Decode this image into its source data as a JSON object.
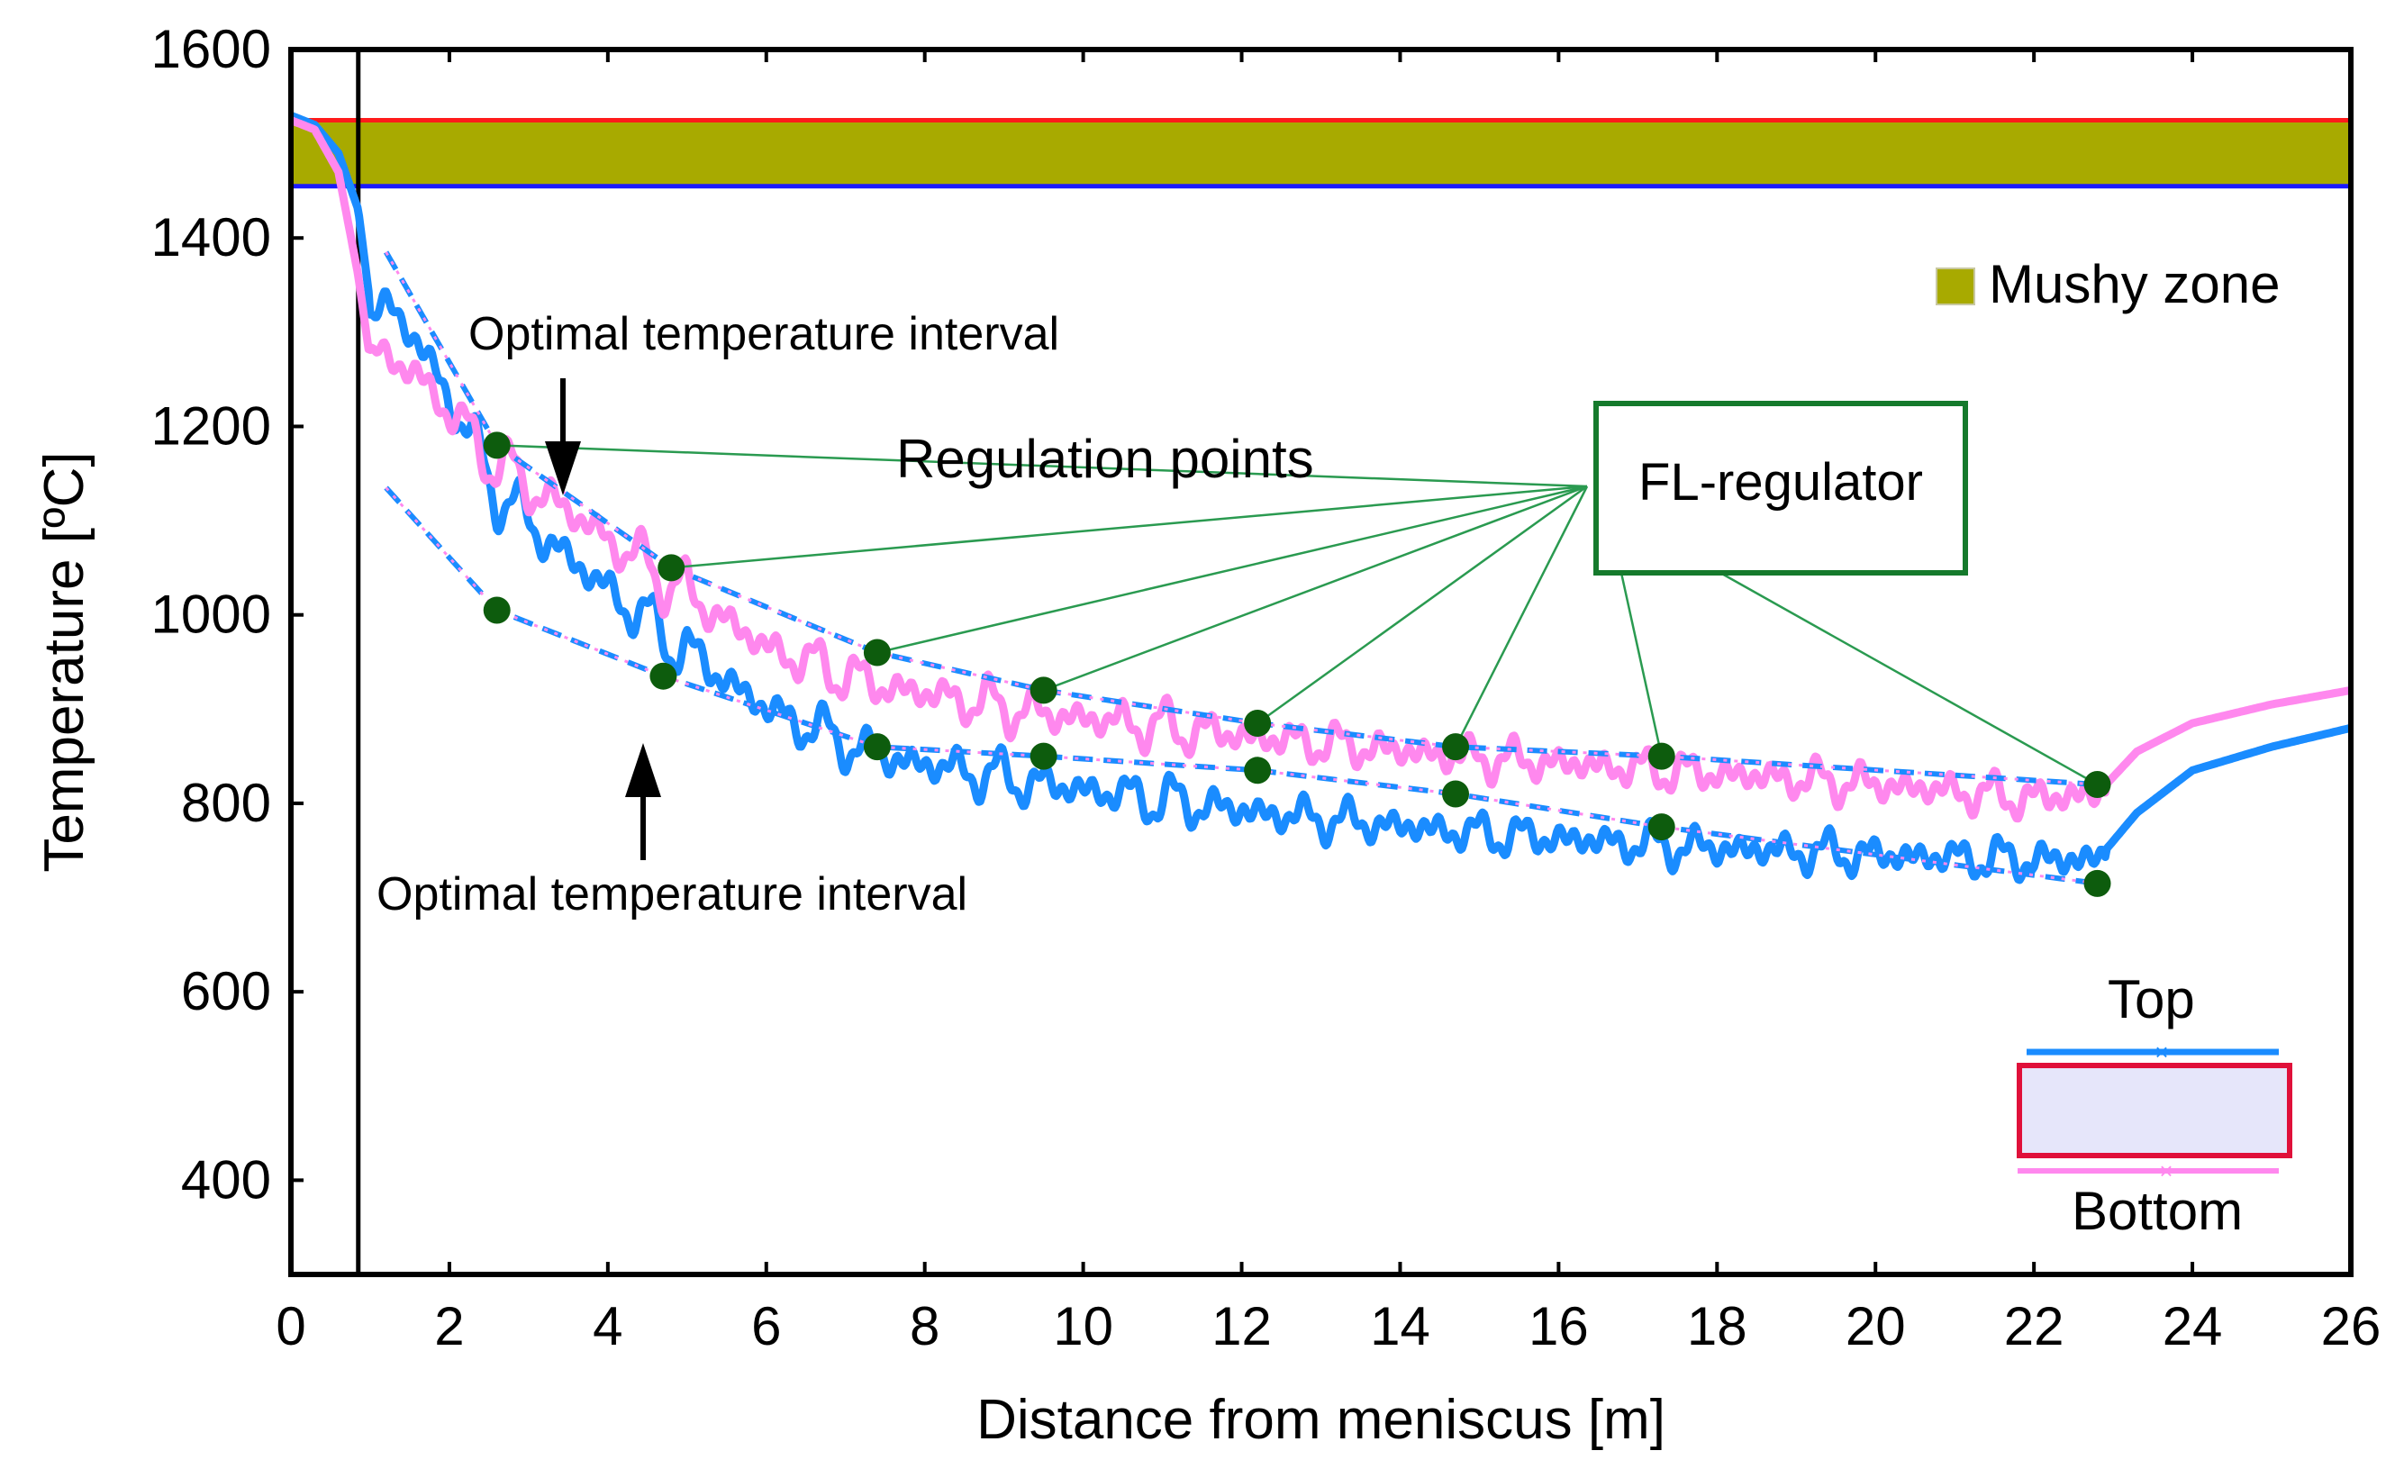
{
  "chart_data": {
    "type": "line",
    "title": "",
    "xlabel": "Distance from meniscus [m]",
    "ylabel": "Temperature [ºC]",
    "xlim": [
      0,
      26
    ],
    "ylim": [
      300,
      1600
    ],
    "x_ticks": [
      0,
      2,
      4,
      6,
      8,
      10,
      12,
      14,
      16,
      18,
      20,
      22,
      24,
      26
    ],
    "y_ticks": [
      400,
      600,
      800,
      1000,
      1200,
      1400,
      1600
    ],
    "grid": false,
    "mold_exit_m": 0.85,
    "mushy_zone": {
      "label": "Mushy zone",
      "liquidus": 1525,
      "solidus": 1455,
      "color": "#a8aa00",
      "liquidus_color": "#ff1a1a",
      "solidus_color": "#1a1aff"
    },
    "series": [
      {
        "name": "Top",
        "color": "#1a8cff",
        "x": [
          0,
          0.3,
          0.6,
          0.85,
          1.0,
          1.3,
          1.6,
          2.0,
          2.6,
          3.5,
          4.7,
          6.0,
          7.4,
          9.5,
          12.2,
          14.7,
          17.3,
          20.0,
          22.0,
          22.8,
          23.3,
          24.0,
          25.0,
          26.0
        ],
        "y": [
          1530,
          1520,
          1490,
          1430,
          1330,
          1320,
          1290,
          1230,
          1130,
          1060,
          980,
          900,
          850,
          820,
          790,
          770,
          755,
          745,
          740,
          740,
          790,
          835,
          860,
          880
        ]
      },
      {
        "name": "Bottom",
        "color": "#ff88ee",
        "x": [
          0,
          0.3,
          0.6,
          0.85,
          1.0,
          1.3,
          1.6,
          2.0,
          2.6,
          3.5,
          4.7,
          6.0,
          7.4,
          9.5,
          12.2,
          14.7,
          17.3,
          20.0,
          22.0,
          22.8,
          23.3,
          24.0,
          25.0,
          26.0
        ],
        "y": [
          1525,
          1515,
          1470,
          1360,
          1270,
          1270,
          1255,
          1215,
          1160,
          1110,
          1040,
          965,
          925,
          895,
          870,
          850,
          835,
          820,
          805,
          810,
          855,
          885,
          905,
          920
        ]
      }
    ],
    "optimal_interval_upper": {
      "x": [
        1.2,
        2.6,
        4.8,
        7.4,
        9.5,
        12.2,
        14.7,
        17.3,
        22.8
      ],
      "y": [
        1385,
        1180,
        1050,
        960,
        920,
        885,
        860,
        850,
        820
      ]
    },
    "optimal_interval_lower": {
      "x": [
        1.2,
        2.6,
        4.7,
        7.4,
        9.5,
        12.2,
        14.7,
        17.3,
        22.8
      ],
      "y": [
        1135,
        1005,
        935,
        860,
        850,
        835,
        810,
        775,
        715
      ]
    },
    "regulation_points_upper": {
      "x": [
        2.6,
        4.8,
        7.4,
        9.5,
        12.2,
        14.7,
        17.3,
        22.8
      ],
      "y": [
        1180,
        1050,
        960,
        920,
        885,
        860,
        850,
        820
      ]
    },
    "regulation_points_lower": {
      "x": [
        2.6,
        4.7,
        7.4,
        9.5,
        12.2,
        14.7,
        17.3,
        22.8
      ],
      "y": [
        1005,
        935,
        860,
        850,
        835,
        810,
        775,
        715
      ]
    },
    "annotations": {
      "optimal_upper": "Optimal temperature interval",
      "optimal_lower": "Optimal temperature interval",
      "regulation_points": "Regulation points",
      "regulator": "FL-regulator",
      "top": "Top",
      "bottom": "Bottom"
    },
    "colors": {
      "point": "#0d5c0d",
      "connector": "#2a9a50",
      "regulator_border": "#157a2c",
      "slab_fill": "#e6e6fa",
      "slab_border": "#e0103a",
      "top_line": "#1a8cff",
      "bottom_line": "#ff88ee"
    }
  }
}
